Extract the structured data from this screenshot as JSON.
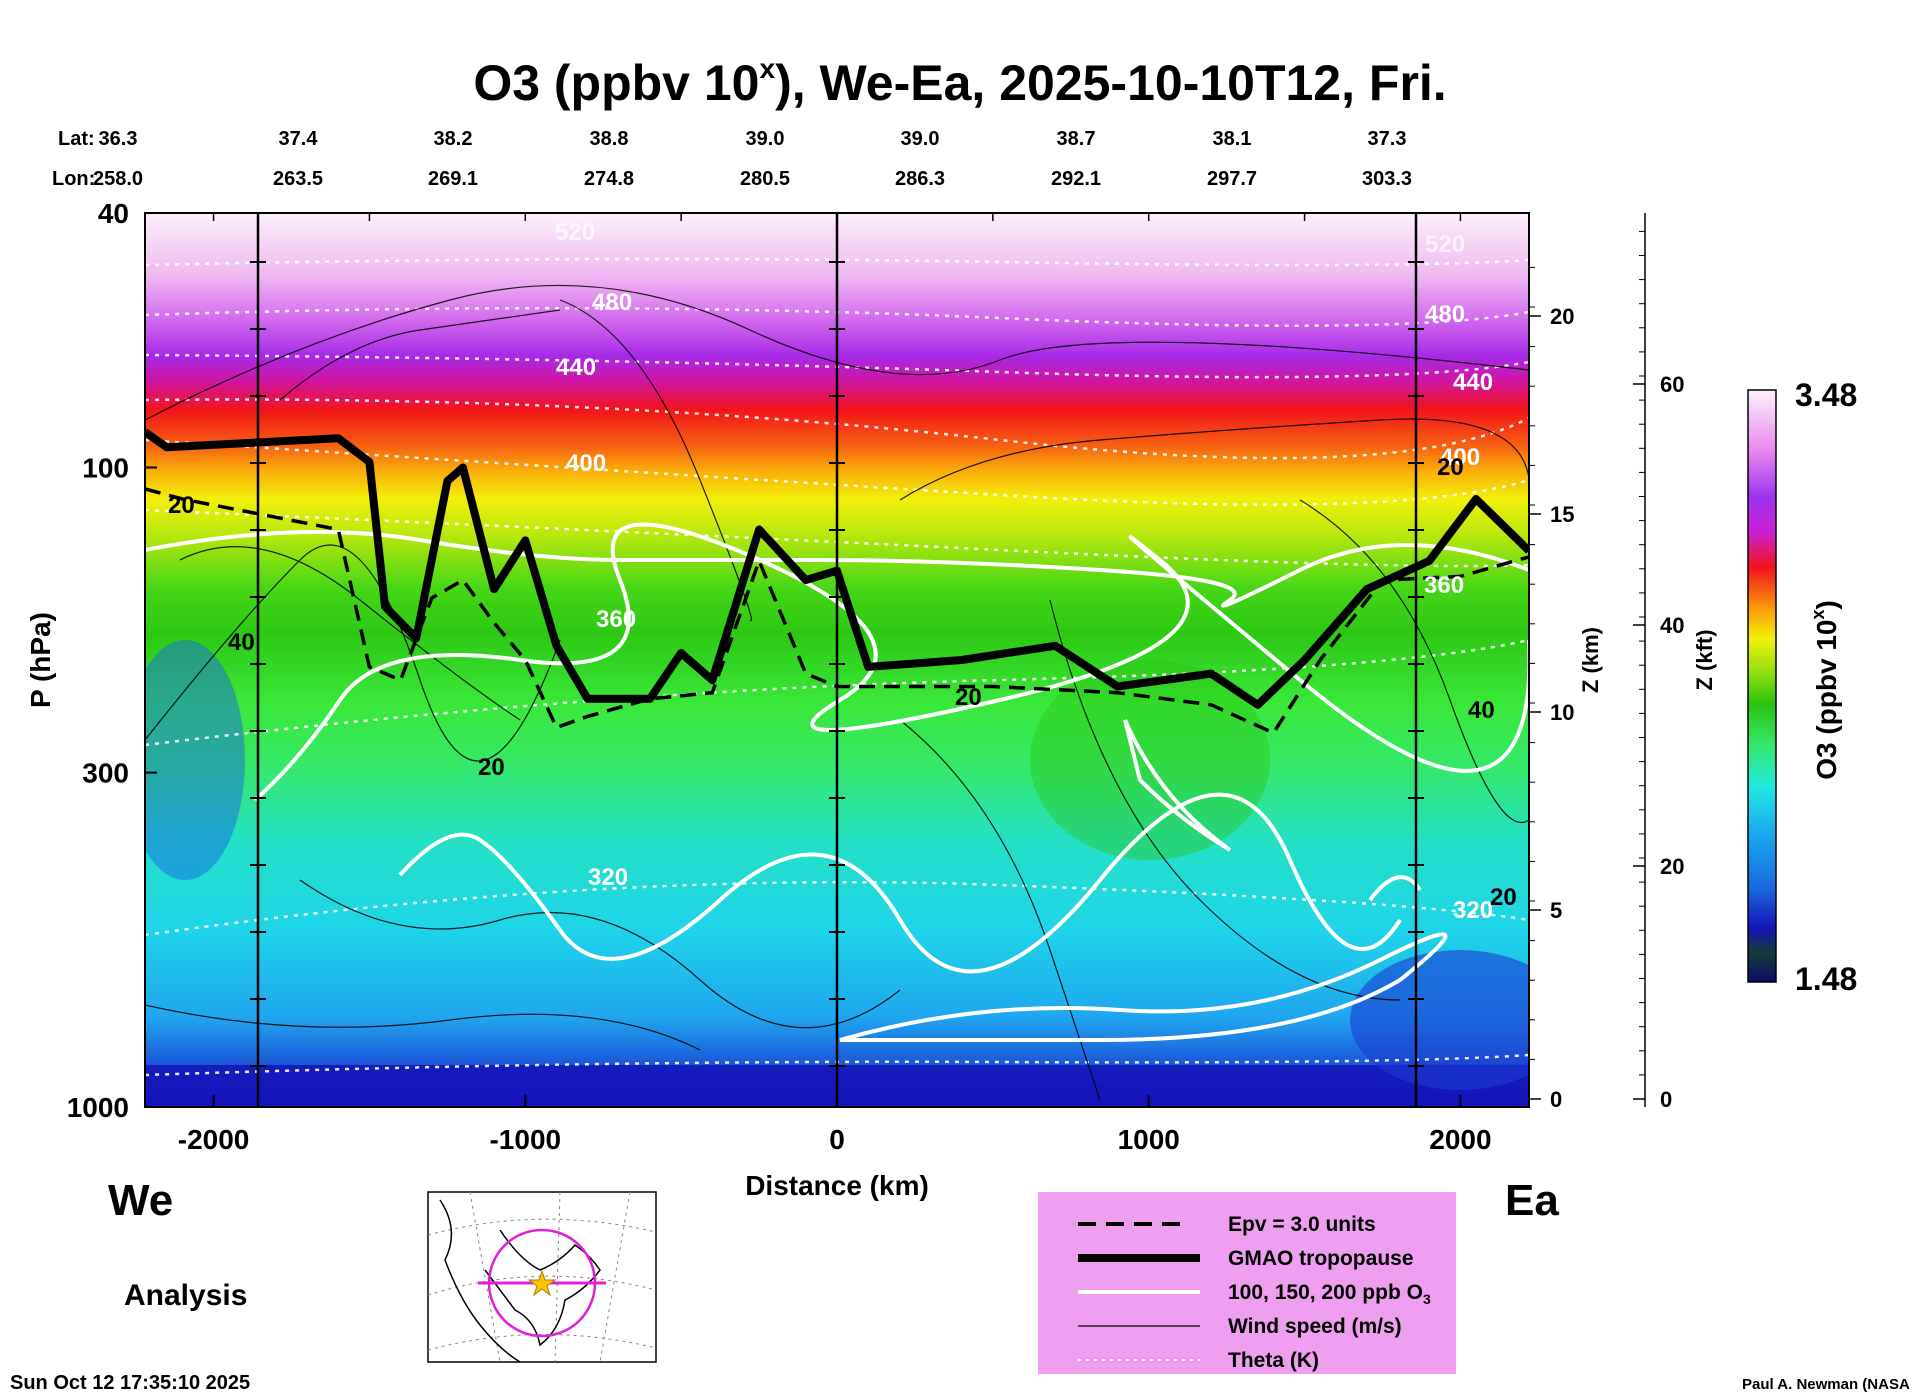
{
  "chart_data": {
    "type": "heatmap",
    "title_main": "O3 (ppbv 10",
    "title_sup": "x",
    "title_rest": "), We-Ea, 2025-10-10T12, Fri.",
    "lat_label": "Lat:",
    "lon_label": "Lon:",
    "lat_values": [
      "36.3",
      "37.4",
      "38.2",
      "38.8",
      "39.0",
      "39.0",
      "38.7",
      "38.1",
      "37.3"
    ],
    "lon_values": [
      "258.0",
      "263.5",
      "269.1",
      "274.8",
      "280.5",
      "286.3",
      "292.1",
      "297.7",
      "303.3"
    ],
    "xlabel": "Distance (km)",
    "xlim": [
      -2220,
      2220
    ],
    "x_ticks": [
      -2000,
      -1000,
      0,
      1000,
      2000
    ],
    "x_tick_labels": [
      "-2000",
      "-1000",
      "0",
      "1000",
      "2000"
    ],
    "ylabel": "P (hPa)",
    "ylim": [
      40,
      1000
    ],
    "y_scale": "log",
    "y_ticks": [
      40,
      100,
      300,
      1000
    ],
    "y_tick_labels": [
      "40",
      "100",
      "300",
      "1000"
    ],
    "z_km_label": "Z (km)",
    "z_km_ticks": [
      "0",
      "5",
      "10",
      "15",
      "20"
    ],
    "z_kft_label": "Z (kft)",
    "z_kft_ticks": [
      "0",
      "20",
      "40",
      "60"
    ],
    "colorbar_label_main": "O3 (ppbv 10",
    "colorbar_label_sup": "x",
    "colorbar_label_end": ")",
    "colorbar_max": "3.48",
    "colorbar_min": "1.48",
    "theta_contour_labels": [
      "520",
      "480",
      "440",
      "400",
      "360",
      "320"
    ],
    "wind_contour_labels": [
      "20",
      "40"
    ],
    "tropopause_pressure_hPa": [
      [
        -2220,
        88
      ],
      [
        -2150,
        93
      ],
      [
        -1600,
        90
      ],
      [
        -1500,
        98
      ],
      [
        -1450,
        165
      ],
      [
        -1350,
        185
      ],
      [
        -1250,
        105
      ],
      [
        -1200,
        100
      ],
      [
        -1100,
        155
      ],
      [
        -1000,
        130
      ],
      [
        -900,
        190
      ],
      [
        -800,
        230
      ],
      [
        -600,
        230
      ],
      [
        -500,
        195
      ],
      [
        -400,
        215
      ],
      [
        -250,
        125
      ],
      [
        -100,
        150
      ],
      [
        0,
        145
      ],
      [
        100,
        205
      ],
      [
        400,
        200
      ],
      [
        700,
        190
      ],
      [
        900,
        220
      ],
      [
        1200,
        210
      ],
      [
        1350,
        235
      ],
      [
        1500,
        200
      ],
      [
        1700,
        155
      ],
      [
        1900,
        140
      ],
      [
        2050,
        112
      ],
      [
        2220,
        135
      ]
    ],
    "epv_pressure_hPa": [
      [
        -2220,
        108
      ],
      [
        -2100,
        112
      ],
      [
        -1600,
        125
      ],
      [
        -1500,
        205
      ],
      [
        -1400,
        215
      ],
      [
        -1300,
        160
      ],
      [
        -1200,
        150
      ],
      [
        -1100,
        175
      ],
      [
        -1000,
        200
      ],
      [
        -900,
        255
      ],
      [
        -800,
        245
      ],
      [
        -600,
        230
      ],
      [
        -400,
        225
      ],
      [
        -250,
        140
      ],
      [
        -100,
        210
      ],
      [
        0,
        220
      ],
      [
        500,
        220
      ],
      [
        900,
        225
      ],
      [
        1200,
        235
      ],
      [
        1400,
        260
      ],
      [
        1550,
        200
      ],
      [
        1750,
        150
      ],
      [
        2000,
        148
      ],
      [
        2220,
        138
      ]
    ],
    "legend": [
      {
        "style": "dashed",
        "label": "Epv = 3.0 units"
      },
      {
        "style": "thick",
        "label": "GMAO tropopause"
      },
      {
        "style": "white",
        "label": "100, 150, 200 ppb O"
      },
      {
        "style": "thin",
        "label": "Wind speed (m/s)"
      },
      {
        "style": "dotted",
        "label": "Theta (K)"
      }
    ],
    "legend_o3_sub": "3",
    "west_label": "We",
    "east_label": "Ea",
    "analysis_label": "Analysis",
    "timestamp": "Sun Oct 12 17:35:10 2025",
    "credit": "Paul A. Newman (NASA"
  },
  "colors": {
    "legend_bg": "#ee9ff0",
    "tropopause": "#000000",
    "colorbar_stops": [
      "#100b66",
      "#1a3cd0",
      "#19a9f0",
      "#1fe9e0",
      "#35e86a",
      "#2bc20f",
      "#9ee20f",
      "#f3ef0a",
      "#fa9c0a",
      "#f2141a",
      "#cc1fd3",
      "#9d35f0",
      "#e88bef",
      "#fdf0fb"
    ]
  }
}
